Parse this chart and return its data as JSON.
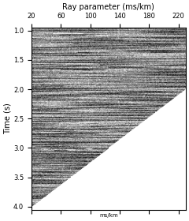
{
  "title": "Ray parameter (ms/km)",
  "ylabel": "Time (s)",
  "xlabel_bottom": "ms/km",
  "xlim": [
    20,
    230
  ],
  "ylim": [
    4.05,
    0.95
  ],
  "xticks": [
    20,
    60,
    100,
    140,
    180,
    220
  ],
  "yticks": [
    1.0,
    1.5,
    2.0,
    2.5,
    3.0,
    3.5,
    4.0
  ],
  "bg_color": "white",
  "figsize": [
    2.4,
    2.8
  ],
  "dpi": 100,
  "seed": 42
}
